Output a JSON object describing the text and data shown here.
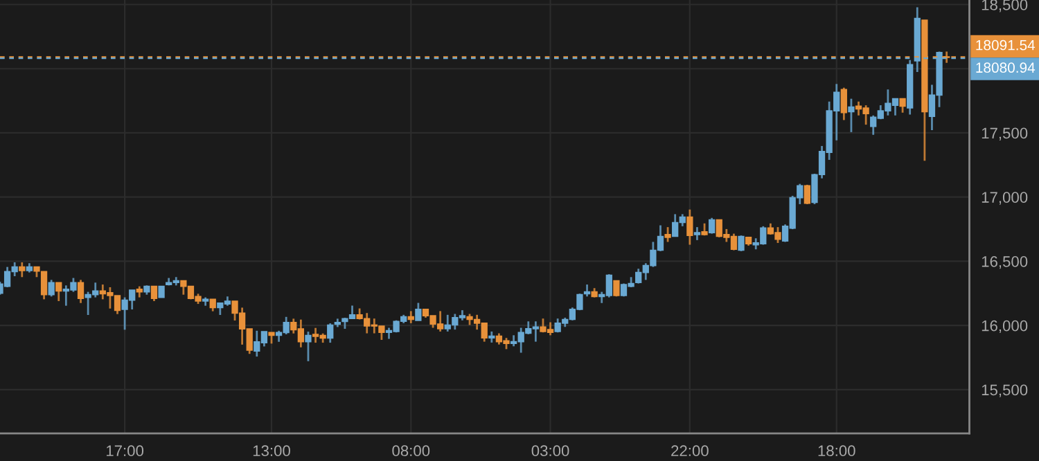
{
  "chart_data": {
    "type": "candlestick",
    "categories": [
      null,
      null,
      null,
      null,
      null,
      null,
      null,
      null,
      null,
      null,
      null,
      null,
      null,
      null,
      null,
      null,
      null,
      "17:00",
      null,
      null,
      null,
      null,
      null,
      null,
      null,
      null,
      null,
      null,
      null,
      null,
      null,
      null,
      null,
      null,
      null,
      null,
      null,
      "13:00",
      null,
      null,
      null,
      null,
      null,
      null,
      null,
      null,
      null,
      null,
      null,
      null,
      null,
      null,
      null,
      null,
      null,
      null,
      "08:00",
      null,
      null,
      null,
      null,
      null,
      null,
      null,
      null,
      null,
      null,
      null,
      null,
      null,
      null,
      null,
      null,
      null,
      null,
      "03:00",
      null,
      null,
      null,
      null,
      null,
      null,
      null,
      null,
      null,
      null,
      null,
      null,
      null,
      null,
      null,
      null,
      null,
      null,
      "22:00",
      null,
      null,
      null,
      null,
      null,
      null,
      null,
      null,
      null,
      null,
      null,
      null,
      null,
      null,
      null,
      null,
      null,
      null,
      null,
      "18:00",
      null,
      null,
      null,
      null,
      null,
      null,
      null,
      null,
      null,
      null,
      null,
      null,
      null,
      null,
      null
    ],
    "ohlc": [
      [
        16251,
        16341,
        16240,
        16323
      ],
      [
        16305,
        16456,
        16298,
        16420
      ],
      [
        16420,
        16492,
        16384,
        16456
      ],
      [
        16456,
        16492,
        16377,
        16427
      ],
      [
        16427,
        16485,
        16413,
        16456
      ],
      [
        16456,
        16456,
        16377,
        16424
      ],
      [
        16420,
        16420,
        16204,
        16240
      ],
      [
        16240,
        16355,
        16226,
        16334
      ],
      [
        16334,
        16334,
        16190,
        16269
      ],
      [
        16269,
        16312,
        16154,
        16283
      ],
      [
        16276,
        16370,
        16262,
        16334
      ],
      [
        16334,
        16355,
        16175,
        16211
      ],
      [
        16219,
        16262,
        16082,
        16240
      ],
      [
        16240,
        16334,
        16219,
        16269
      ],
      [
        16269,
        16319,
        16204,
        16247
      ],
      [
        16255,
        16298,
        16132,
        16233
      ],
      [
        16233,
        16233,
        16089,
        16118
      ],
      [
        16125,
        16219,
        15967,
        16197
      ],
      [
        16197,
        16276,
        16125,
        16276
      ],
      [
        16283,
        16305,
        16219,
        16262
      ],
      [
        16262,
        16312,
        16240,
        16305
      ],
      [
        16305,
        16305,
        16190,
        16211
      ],
      [
        16219,
        16305,
        16219,
        16305
      ],
      [
        16319,
        16370,
        16312,
        16334
      ],
      [
        16334,
        16377,
        16312,
        16348
      ],
      [
        16348,
        16348,
        16240,
        16305
      ],
      [
        16305,
        16305,
        16204,
        16211
      ],
      [
        16226,
        16247,
        16168,
        16190
      ],
      [
        16190,
        16219,
        16154,
        16204
      ],
      [
        16204,
        16204,
        16111,
        16139
      ],
      [
        16139,
        16175,
        16082,
        16175
      ],
      [
        16168,
        16226,
        16154,
        16190
      ],
      [
        16190,
        16190,
        16039,
        16096
      ],
      [
        16096,
        16139,
        15851,
        15974
      ],
      [
        15974,
        15974,
        15779,
        15808
      ],
      [
        15801,
        15959,
        15758,
        15873
      ],
      [
        15866,
        15952,
        15837,
        15952
      ],
      [
        15945,
        15945,
        15859,
        15923
      ],
      [
        15923,
        15959,
        15873,
        15945
      ],
      [
        15945,
        16067,
        15931,
        16024
      ],
      [
        16024,
        16053,
        15938,
        15967
      ],
      [
        15974,
        16046,
        15830,
        15873
      ],
      [
        15873,
        15952,
        15722,
        15923
      ],
      [
        15931,
        15981,
        15866,
        15916
      ],
      [
        15923,
        15938,
        15866,
        15902
      ],
      [
        15902,
        16017,
        15866,
        16003
      ],
      [
        16010,
        16053,
        15988,
        16024
      ],
      [
        16031,
        16060,
        15974,
        16053
      ],
      [
        16054,
        16155,
        16054,
        16083
      ],
      [
        16083,
        16133,
        16047,
        16054
      ],
      [
        16054,
        16097,
        15939,
        15996
      ],
      [
        16004,
        16054,
        15939,
        15996
      ],
      [
        15996,
        15996,
        15888,
        15946
      ],
      [
        15946,
        15982,
        15896,
        15960
      ],
      [
        15953,
        16040,
        15946,
        16032
      ],
      [
        16032,
        16083,
        16018,
        16068
      ],
      [
        16068,
        16112,
        16018,
        16047
      ],
      [
        16040,
        16176,
        16040,
        16126
      ],
      [
        16126,
        16126,
        16061,
        16076
      ],
      [
        16076,
        16076,
        15982,
        16011
      ],
      [
        16011,
        16112,
        15953,
        15975
      ],
      [
        15975,
        16083,
        15953,
        16004
      ],
      [
        16004,
        16090,
        15968,
        16061
      ],
      [
        16061,
        16119,
        16040,
        16076
      ],
      [
        16068,
        16090,
        16004,
        16047
      ],
      [
        16047,
        16083,
        15968,
        16018
      ],
      [
        16018,
        16018,
        15874,
        15903
      ],
      [
        15903,
        15953,
        15867,
        15917
      ],
      [
        15917,
        15939,
        15852,
        15874
      ],
      [
        15881,
        15903,
        15816,
        15860
      ],
      [
        15860,
        15924,
        15838,
        15874
      ],
      [
        15874,
        15982,
        15788,
        15946
      ],
      [
        15939,
        16032,
        15932,
        15975
      ],
      [
        15975,
        16032,
        15874,
        15989
      ],
      [
        15989,
        16054,
        15946,
        15953
      ],
      [
        15968,
        16025,
        15924,
        15946
      ],
      [
        15953,
        16054,
        15946,
        16018
      ],
      [
        16018,
        16061,
        15989,
        16047
      ],
      [
        16047,
        16140,
        16040,
        16126
      ],
      [
        16126,
        16248,
        16119,
        16241
      ],
      [
        16247,
        16319,
        16226,
        16262
      ],
      [
        16262,
        16291,
        16219,
        16226
      ],
      [
        16226,
        16262,
        16175,
        16240
      ],
      [
        16233,
        16399,
        16219,
        16391
      ],
      [
        16348,
        16348,
        16226,
        16233
      ],
      [
        16233,
        16327,
        16226,
        16319
      ],
      [
        16305,
        16377,
        16298,
        16327
      ],
      [
        16334,
        16442,
        16327,
        16413
      ],
      [
        16413,
        16485,
        16355,
        16467
      ],
      [
        16467,
        16651,
        16456,
        16586
      ],
      [
        16586,
        16780,
        16579,
        16694
      ],
      [
        16708,
        16766,
        16651,
        16687
      ],
      [
        16694,
        16867,
        16694,
        16802
      ],
      [
        16802,
        16867,
        16773,
        16845
      ],
      [
        16845,
        16903,
        16629,
        16701
      ],
      [
        16708,
        16766,
        16665,
        16723
      ],
      [
        16730,
        16795,
        16701,
        16708
      ],
      [
        16723,
        16838,
        16715,
        16823
      ],
      [
        16823,
        16823,
        16687,
        16694
      ],
      [
        16708,
        16751,
        16651,
        16687
      ],
      [
        16694,
        16715,
        16586,
        16593
      ],
      [
        16586,
        16701,
        16579,
        16694
      ],
      [
        16687,
        16687,
        16622,
        16636
      ],
      [
        16629,
        16679,
        16593,
        16643
      ],
      [
        16636,
        16773,
        16629,
        16759
      ],
      [
        16759,
        16795,
        16708,
        16715
      ],
      [
        16723,
        16766,
        16643,
        16672
      ],
      [
        16658,
        16787,
        16651,
        16773
      ],
      [
        16758,
        17010,
        16750,
        16995
      ],
      [
        16995,
        17103,
        16945,
        17089
      ],
      [
        17089,
        17096,
        16945,
        16952
      ],
      [
        16959,
        17182,
        16945,
        17175
      ],
      [
        17175,
        17398,
        17146,
        17355
      ],
      [
        17348,
        17744,
        17290,
        17672
      ],
      [
        17672,
        17881,
        17442,
        17816
      ],
      [
        17838,
        17852,
        17600,
        17658
      ],
      [
        17665,
        17766,
        17506,
        17701
      ],
      [
        17708,
        17744,
        17636,
        17686
      ],
      [
        17694,
        17715,
        17564,
        17650
      ],
      [
        17550,
        17636,
        17485,
        17622
      ],
      [
        17614,
        17715,
        17607,
        17672
      ],
      [
        17672,
        17838,
        17636,
        17730
      ],
      [
        17715,
        17766,
        17636,
        17766
      ],
      [
        17766,
        17766,
        17658,
        17708
      ],
      [
        17694,
        18068,
        17643,
        18032
      ],
      [
        18061,
        18478,
        17974,
        18392
      ],
      [
        18378,
        18378,
        17283,
        17665
      ],
      [
        17629,
        17874,
        17521,
        17794
      ],
      [
        17794,
        18133,
        17701,
        18126
      ],
      [
        18092,
        18133,
        18046,
        18088
      ]
    ],
    "colors": [
      "#6aa9d3",
      "#6aa9d3",
      "#6aa9d3",
      "#e8913a",
      "#6aa9d3",
      "#e8913a",
      "#e8913a",
      "#6aa9d3",
      "#e8913a",
      "#6aa9d3",
      "#6aa9d3",
      "#e8913a",
      "#6aa9d3",
      "#6aa9d3",
      "#e8913a",
      "#e8913a",
      "#e8913a",
      "#6aa9d3",
      "#6aa9d3",
      "#e8913a",
      "#6aa9d3",
      "#e8913a",
      "#6aa9d3",
      "#6aa9d3",
      "#6aa9d3",
      "#e8913a",
      "#e8913a",
      "#e8913a",
      "#6aa9d3",
      "#e8913a",
      "#6aa9d3",
      "#6aa9d3",
      "#e8913a",
      "#e8913a",
      "#e8913a",
      "#6aa9d3",
      "#6aa9d3",
      "#e8913a",
      "#6aa9d3",
      "#6aa9d3",
      "#e8913a",
      "#e8913a",
      "#6aa9d3",
      "#e8913a",
      "#e8913a",
      "#6aa9d3",
      "#6aa9d3",
      "#6aa9d3",
      "#6aa9d3",
      "#e8913a",
      "#e8913a",
      "#e8913a",
      "#e8913a",
      "#6aa9d3",
      "#6aa9d3",
      "#6aa9d3",
      "#e8913a",
      "#6aa9d3",
      "#e8913a",
      "#e8913a",
      "#e8913a",
      "#6aa9d3",
      "#6aa9d3",
      "#6aa9d3",
      "#e8913a",
      "#e8913a",
      "#e8913a",
      "#6aa9d3",
      "#e8913a",
      "#e8913a",
      "#6aa9d3",
      "#6aa9d3",
      "#6aa9d3",
      "#6aa9d3",
      "#e8913a",
      "#e8913a",
      "#6aa9d3",
      "#6aa9d3",
      "#6aa9d3",
      "#6aa9d3",
      "#6aa9d3",
      "#e8913a",
      "#6aa9d3",
      "#6aa9d3",
      "#e8913a",
      "#6aa9d3",
      "#6aa9d3",
      "#6aa9d3",
      "#6aa9d3",
      "#6aa9d3",
      "#6aa9d3",
      "#e8913a",
      "#6aa9d3",
      "#6aa9d3",
      "#e8913a",
      "#6aa9d3",
      "#e8913a",
      "#6aa9d3",
      "#e8913a",
      "#e8913a",
      "#e8913a",
      "#6aa9d3",
      "#e8913a",
      "#6aa9d3",
      "#6aa9d3",
      "#e8913a",
      "#e8913a",
      "#6aa9d3",
      "#6aa9d3",
      "#6aa9d3",
      "#e8913a",
      "#6aa9d3",
      "#6aa9d3",
      "#6aa9d3",
      "#6aa9d3",
      "#e8913a",
      "#6aa9d3",
      "#e8913a",
      "#e8913a",
      "#6aa9d3",
      "#6aa9d3",
      "#6aa9d3",
      "#6aa9d3",
      "#e8913a",
      "#6aa9d3",
      "#6aa9d3",
      "#e8913a",
      "#6aa9d3",
      "#6aa9d3",
      "#e8913a"
    ],
    "ylim": [
      15160,
      18535
    ],
    "yticks": [
      {
        "value": 15500,
        "label": "15,500"
      },
      {
        "value": 16000,
        "label": "16,000"
      },
      {
        "value": 16500,
        "label": "16,500"
      },
      {
        "value": 17000,
        "label": "17,000"
      },
      {
        "value": 17500,
        "label": "17,500"
      },
      {
        "value": 18000,
        "label": null
      },
      {
        "value": 18500,
        "label": "18,500"
      }
    ],
    "ref_lines": [
      {
        "axis": "y",
        "value": 18091.54,
        "label": "18091.54",
        "color": "#e8913a",
        "line_style": "dashed"
      },
      {
        "axis": "y",
        "value": 18080.94,
        "label": "18080.94",
        "color": "#6aa9d3",
        "line_style": "dashed"
      }
    ],
    "grid": true
  }
}
